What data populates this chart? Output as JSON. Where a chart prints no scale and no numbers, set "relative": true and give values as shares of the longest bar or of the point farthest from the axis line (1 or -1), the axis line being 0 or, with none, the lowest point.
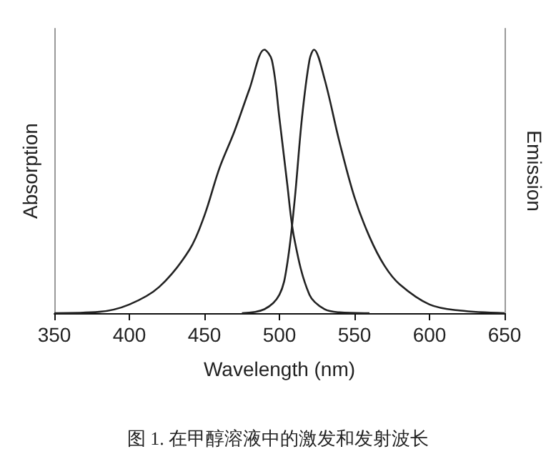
{
  "chart_data": {
    "type": "line",
    "relative": true,
    "xlabel": "Wavelength (nm)",
    "ylabel": "Absorption",
    "y2label": "Emission",
    "xlim": [
      350,
      650
    ],
    "xticks": [
      350,
      400,
      450,
      500,
      550,
      600,
      650
    ],
    "grid": false,
    "marker": "none",
    "line_style": "solid",
    "annotations": [
      "图 1. 在甲醇溶液中的激发和发射波长"
    ],
    "series": [
      {
        "color": "#222222",
        "x": [
          350,
          380,
          400,
          420,
          440,
          450,
          460,
          470,
          480,
          490,
          495,
          500,
          505,
          510,
          520,
          530,
          540,
          560
        ],
        "values": [
          0,
          0.005,
          0.033,
          0.1,
          0.24,
          0.37,
          0.55,
          0.69,
          0.85,
          1.0,
          0.96,
          0.74,
          0.5,
          0.28,
          0.07,
          0.015,
          0.003,
          0
        ]
      },
      {
        "color": "#222222",
        "x": [
          475,
          490,
          500,
          505,
          510,
          515,
          520,
          523,
          530,
          540,
          550,
          560,
          570,
          580,
          600,
          620,
          650
        ],
        "values": [
          0,
          0.015,
          0.07,
          0.18,
          0.42,
          0.74,
          0.96,
          1.0,
          0.89,
          0.65,
          0.44,
          0.29,
          0.18,
          0.11,
          0.033,
          0.01,
          0
        ]
      }
    ]
  }
}
